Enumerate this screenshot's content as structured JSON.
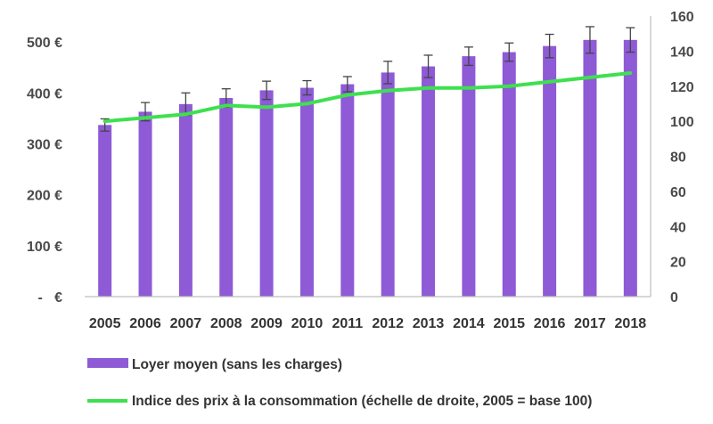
{
  "chart_data": {
    "type": "bar",
    "categories": [
      "2005",
      "2006",
      "2007",
      "2008",
      "2009",
      "2010",
      "2011",
      "2012",
      "2013",
      "2014",
      "2015",
      "2016",
      "2017",
      "2018"
    ],
    "series": [
      {
        "name": "Loyer moyen (sans les charges)",
        "type": "bar",
        "axis": "left",
        "color": "#8e5ad6",
        "values": [
          337,
          363,
          378,
          390,
          405,
          410,
          417,
          440,
          452,
          472,
          480,
          492,
          504,
          504
        ],
        "error": [
          12,
          18,
          22,
          18,
          18,
          14,
          15,
          22,
          22,
          18,
          18,
          23,
          26,
          24
        ]
      },
      {
        "name": "Indice des prix à la consommation (échelle de droite, 2005 = base 100)",
        "type": "line",
        "axis": "right",
        "color": "#3ee04f",
        "values": [
          100,
          102,
          104,
          109,
          108,
          110,
          115,
          117.5,
          119,
          119,
          120,
          122.5,
          125,
          127.5
        ]
      }
    ],
    "y_left": {
      "ylim": [
        0,
        550
      ],
      "ticks": [
        0,
        100,
        200,
        300,
        400,
        500
      ],
      "tick_labels": [
        "-   €",
        "100 €",
        "200 €",
        "300 €",
        "400 €",
        "500 €"
      ]
    },
    "y_right": {
      "ylim": [
        0,
        160
      ],
      "ticks": [
        0,
        20,
        40,
        60,
        80,
        100,
        120,
        140,
        160
      ],
      "tick_labels": [
        "0",
        "20",
        "40",
        "60",
        "80",
        "100",
        "120",
        "140",
        "160"
      ]
    },
    "grid": false,
    "legend_position": "bottom"
  }
}
